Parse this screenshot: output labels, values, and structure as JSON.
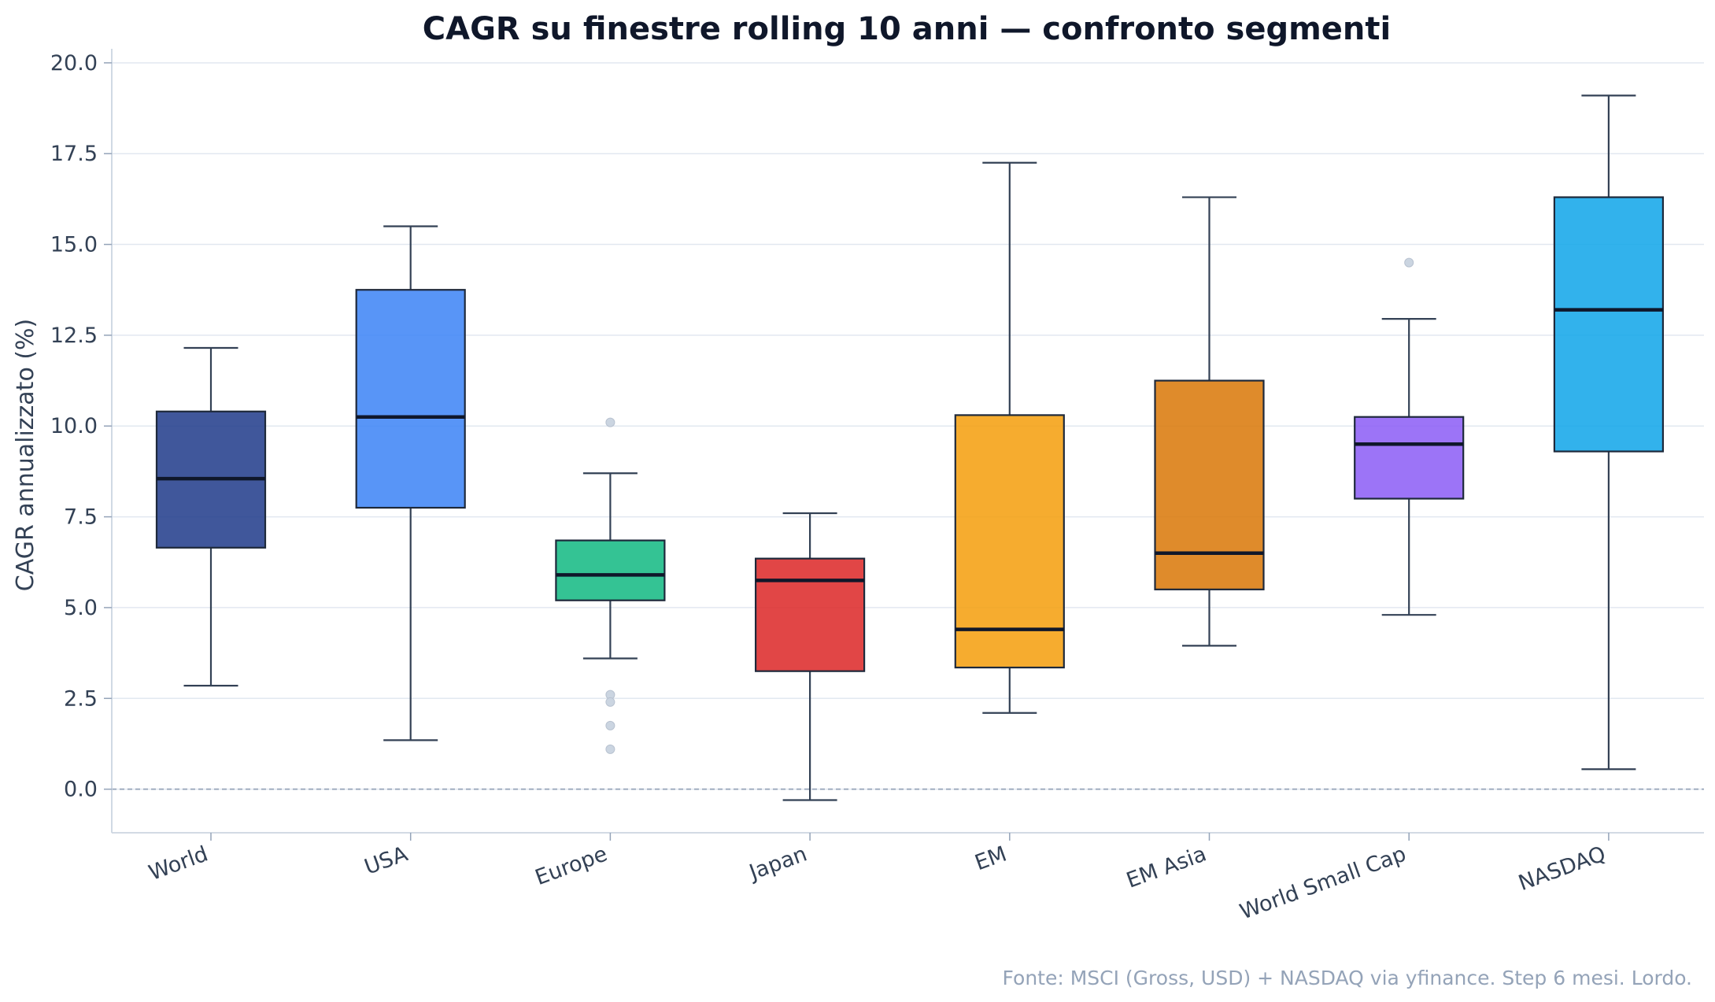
{
  "chart_data": {
    "type": "boxplot",
    "title": "CAGR su finestre rolling 10 anni — confronto segmenti",
    "ylabel": "CAGR annualizzato (%)",
    "xlabel": "",
    "ylim": [
      -1.2,
      20.3
    ],
    "yticks": [
      "0.0",
      "2.5",
      "5.0",
      "7.5",
      "10.0",
      "12.5",
      "15.0",
      "17.5",
      "20.0"
    ],
    "reference_line": 0,
    "grid": "horizontal",
    "categories": [
      "World",
      "USA",
      "Europe",
      "Japan",
      "EM",
      "EM Asia",
      "World Small Cap",
      "NASDAQ"
    ],
    "boxes": [
      {
        "label": "World",
        "whisker_low": 2.85,
        "q1": 6.65,
        "median": 8.55,
        "q3": 10.4,
        "whisker_high": 12.15,
        "outliers": [],
        "color": "#1e3a8a"
      },
      {
        "label": "USA",
        "whisker_low": 1.35,
        "q1": 7.75,
        "median": 10.25,
        "q3": 13.75,
        "whisker_high": 15.5,
        "outliers": [],
        "color": "#3b82f6"
      },
      {
        "label": "Europe",
        "whisker_low": 3.6,
        "q1": 5.2,
        "median": 5.9,
        "q3": 6.85,
        "whisker_high": 8.7,
        "outliers": [
          10.1,
          2.6,
          2.4,
          1.75,
          1.1
        ],
        "color": "#10b981"
      },
      {
        "label": "Japan",
        "whisker_low": -0.3,
        "q1": 3.25,
        "median": 5.75,
        "q3": 6.35,
        "whisker_high": 7.6,
        "outliers": [],
        "color": "#dc2626"
      },
      {
        "label": "EM",
        "whisker_low": 2.1,
        "q1": 3.35,
        "median": 4.4,
        "q3": 10.3,
        "whisker_high": 17.25,
        "outliers": [],
        "color": "#f59e0b"
      },
      {
        "label": "EM Asia",
        "whisker_low": 3.95,
        "q1": 5.5,
        "median": 6.5,
        "q3": 11.25,
        "whisker_high": 16.3,
        "outliers": [],
        "color": "#d97706"
      },
      {
        "label": "World Small Cap",
        "whisker_low": 4.8,
        "q1": 8.0,
        "median": 9.5,
        "q3": 10.25,
        "whisker_high": 12.95,
        "outliers": [
          14.5
        ],
        "color": "#8b5cf6"
      },
      {
        "label": "NASDAQ",
        "whisker_low": 0.55,
        "q1": 9.3,
        "median": 13.2,
        "q3": 16.3,
        "whisker_high": 19.1,
        "outliers": [],
        "color": "#0ea5e9"
      }
    ],
    "source_note": "Fonte: MSCI (Gross, USD) + NASDAQ via yfinance. Step 6 mesi. Lordo."
  }
}
